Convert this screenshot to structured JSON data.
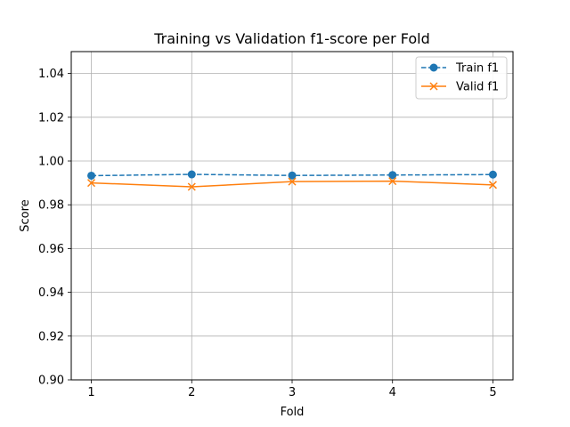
{
  "chart_data": {
    "type": "line",
    "title": "Training vs Validation f1-score per Fold",
    "xlabel": "Fold",
    "ylabel": "Score",
    "x": [
      1,
      2,
      3,
      4,
      5
    ],
    "xticks": [
      "1",
      "2",
      "3",
      "4",
      "5"
    ],
    "xlim": [
      0.8,
      5.2
    ],
    "ylim": [
      0.9,
      1.05
    ],
    "yticks": [
      "0.90",
      "0.92",
      "0.94",
      "0.96",
      "0.98",
      "1.00",
      "1.02",
      "1.04"
    ],
    "grid": true,
    "legend_position": "top-right",
    "series": [
      {
        "name": "Train f1",
        "values": [
          0.9933,
          0.9939,
          0.9934,
          0.9936,
          0.9938
        ],
        "color": "#1f77b4",
        "line_style": "dashed",
        "marker": "circle"
      },
      {
        "name": "Valid f1",
        "values": [
          0.99,
          0.9882,
          0.9906,
          0.9908,
          0.9891
        ],
        "color": "#ff7f0e",
        "line_style": "solid",
        "marker": "x"
      }
    ]
  }
}
